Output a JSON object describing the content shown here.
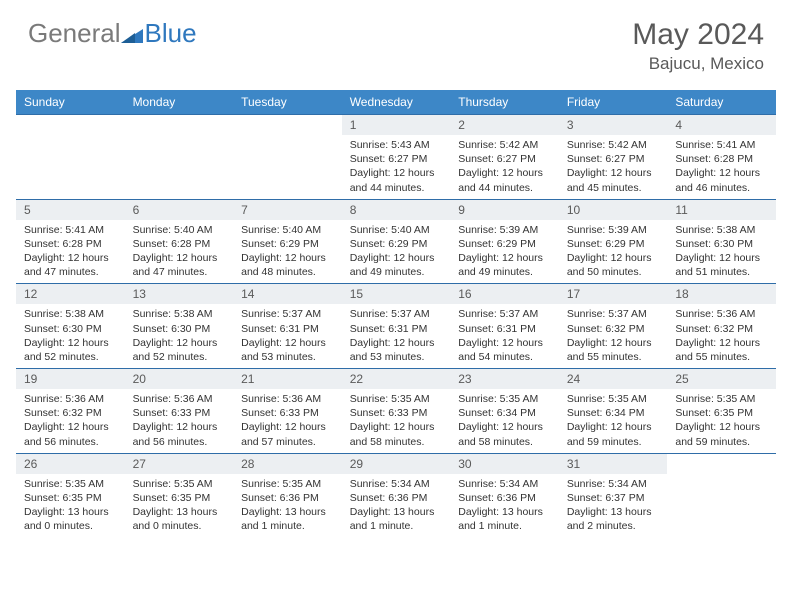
{
  "brand": {
    "part1": "General",
    "part2": "Blue"
  },
  "header": {
    "month_title": "May 2024",
    "location": "Bajucu, Mexico"
  },
  "colors": {
    "header_bg": "#3d87c7",
    "header_text": "#ffffff",
    "daynum_bg": "#eceff2",
    "border": "#2f6da8",
    "brand_gray": "#7a7a7a",
    "brand_blue": "#2f78be"
  },
  "weekdays": [
    "Sunday",
    "Monday",
    "Tuesday",
    "Wednesday",
    "Thursday",
    "Friday",
    "Saturday"
  ],
  "weeks": [
    [
      {
        "day": "",
        "sunrise": "",
        "sunset": "",
        "daylight": ""
      },
      {
        "day": "",
        "sunrise": "",
        "sunset": "",
        "daylight": ""
      },
      {
        "day": "",
        "sunrise": "",
        "sunset": "",
        "daylight": ""
      },
      {
        "day": "1",
        "sunrise": "Sunrise: 5:43 AM",
        "sunset": "Sunset: 6:27 PM",
        "daylight": "Daylight: 12 hours and 44 minutes."
      },
      {
        "day": "2",
        "sunrise": "Sunrise: 5:42 AM",
        "sunset": "Sunset: 6:27 PM",
        "daylight": "Daylight: 12 hours and 44 minutes."
      },
      {
        "day": "3",
        "sunrise": "Sunrise: 5:42 AM",
        "sunset": "Sunset: 6:27 PM",
        "daylight": "Daylight: 12 hours and 45 minutes."
      },
      {
        "day": "4",
        "sunrise": "Sunrise: 5:41 AM",
        "sunset": "Sunset: 6:28 PM",
        "daylight": "Daylight: 12 hours and 46 minutes."
      }
    ],
    [
      {
        "day": "5",
        "sunrise": "Sunrise: 5:41 AM",
        "sunset": "Sunset: 6:28 PM",
        "daylight": "Daylight: 12 hours and 47 minutes."
      },
      {
        "day": "6",
        "sunrise": "Sunrise: 5:40 AM",
        "sunset": "Sunset: 6:28 PM",
        "daylight": "Daylight: 12 hours and 47 minutes."
      },
      {
        "day": "7",
        "sunrise": "Sunrise: 5:40 AM",
        "sunset": "Sunset: 6:29 PM",
        "daylight": "Daylight: 12 hours and 48 minutes."
      },
      {
        "day": "8",
        "sunrise": "Sunrise: 5:40 AM",
        "sunset": "Sunset: 6:29 PM",
        "daylight": "Daylight: 12 hours and 49 minutes."
      },
      {
        "day": "9",
        "sunrise": "Sunrise: 5:39 AM",
        "sunset": "Sunset: 6:29 PM",
        "daylight": "Daylight: 12 hours and 49 minutes."
      },
      {
        "day": "10",
        "sunrise": "Sunrise: 5:39 AM",
        "sunset": "Sunset: 6:29 PM",
        "daylight": "Daylight: 12 hours and 50 minutes."
      },
      {
        "day": "11",
        "sunrise": "Sunrise: 5:38 AM",
        "sunset": "Sunset: 6:30 PM",
        "daylight": "Daylight: 12 hours and 51 minutes."
      }
    ],
    [
      {
        "day": "12",
        "sunrise": "Sunrise: 5:38 AM",
        "sunset": "Sunset: 6:30 PM",
        "daylight": "Daylight: 12 hours and 52 minutes."
      },
      {
        "day": "13",
        "sunrise": "Sunrise: 5:38 AM",
        "sunset": "Sunset: 6:30 PM",
        "daylight": "Daylight: 12 hours and 52 minutes."
      },
      {
        "day": "14",
        "sunrise": "Sunrise: 5:37 AM",
        "sunset": "Sunset: 6:31 PM",
        "daylight": "Daylight: 12 hours and 53 minutes."
      },
      {
        "day": "15",
        "sunrise": "Sunrise: 5:37 AM",
        "sunset": "Sunset: 6:31 PM",
        "daylight": "Daylight: 12 hours and 53 minutes."
      },
      {
        "day": "16",
        "sunrise": "Sunrise: 5:37 AM",
        "sunset": "Sunset: 6:31 PM",
        "daylight": "Daylight: 12 hours and 54 minutes."
      },
      {
        "day": "17",
        "sunrise": "Sunrise: 5:37 AM",
        "sunset": "Sunset: 6:32 PM",
        "daylight": "Daylight: 12 hours and 55 minutes."
      },
      {
        "day": "18",
        "sunrise": "Sunrise: 5:36 AM",
        "sunset": "Sunset: 6:32 PM",
        "daylight": "Daylight: 12 hours and 55 minutes."
      }
    ],
    [
      {
        "day": "19",
        "sunrise": "Sunrise: 5:36 AM",
        "sunset": "Sunset: 6:32 PM",
        "daylight": "Daylight: 12 hours and 56 minutes."
      },
      {
        "day": "20",
        "sunrise": "Sunrise: 5:36 AM",
        "sunset": "Sunset: 6:33 PM",
        "daylight": "Daylight: 12 hours and 56 minutes."
      },
      {
        "day": "21",
        "sunrise": "Sunrise: 5:36 AM",
        "sunset": "Sunset: 6:33 PM",
        "daylight": "Daylight: 12 hours and 57 minutes."
      },
      {
        "day": "22",
        "sunrise": "Sunrise: 5:35 AM",
        "sunset": "Sunset: 6:33 PM",
        "daylight": "Daylight: 12 hours and 58 minutes."
      },
      {
        "day": "23",
        "sunrise": "Sunrise: 5:35 AM",
        "sunset": "Sunset: 6:34 PM",
        "daylight": "Daylight: 12 hours and 58 minutes."
      },
      {
        "day": "24",
        "sunrise": "Sunrise: 5:35 AM",
        "sunset": "Sunset: 6:34 PM",
        "daylight": "Daylight: 12 hours and 59 minutes."
      },
      {
        "day": "25",
        "sunrise": "Sunrise: 5:35 AM",
        "sunset": "Sunset: 6:35 PM",
        "daylight": "Daylight: 12 hours and 59 minutes."
      }
    ],
    [
      {
        "day": "26",
        "sunrise": "Sunrise: 5:35 AM",
        "sunset": "Sunset: 6:35 PM",
        "daylight": "Daylight: 13 hours and 0 minutes."
      },
      {
        "day": "27",
        "sunrise": "Sunrise: 5:35 AM",
        "sunset": "Sunset: 6:35 PM",
        "daylight": "Daylight: 13 hours and 0 minutes."
      },
      {
        "day": "28",
        "sunrise": "Sunrise: 5:35 AM",
        "sunset": "Sunset: 6:36 PM",
        "daylight": "Daylight: 13 hours and 1 minute."
      },
      {
        "day": "29",
        "sunrise": "Sunrise: 5:34 AM",
        "sunset": "Sunset: 6:36 PM",
        "daylight": "Daylight: 13 hours and 1 minute."
      },
      {
        "day": "30",
        "sunrise": "Sunrise: 5:34 AM",
        "sunset": "Sunset: 6:36 PM",
        "daylight": "Daylight: 13 hours and 1 minute."
      },
      {
        "day": "31",
        "sunrise": "Sunrise: 5:34 AM",
        "sunset": "Sunset: 6:37 PM",
        "daylight": "Daylight: 13 hours and 2 minutes."
      },
      {
        "day": "",
        "sunrise": "",
        "sunset": "",
        "daylight": ""
      }
    ]
  ]
}
